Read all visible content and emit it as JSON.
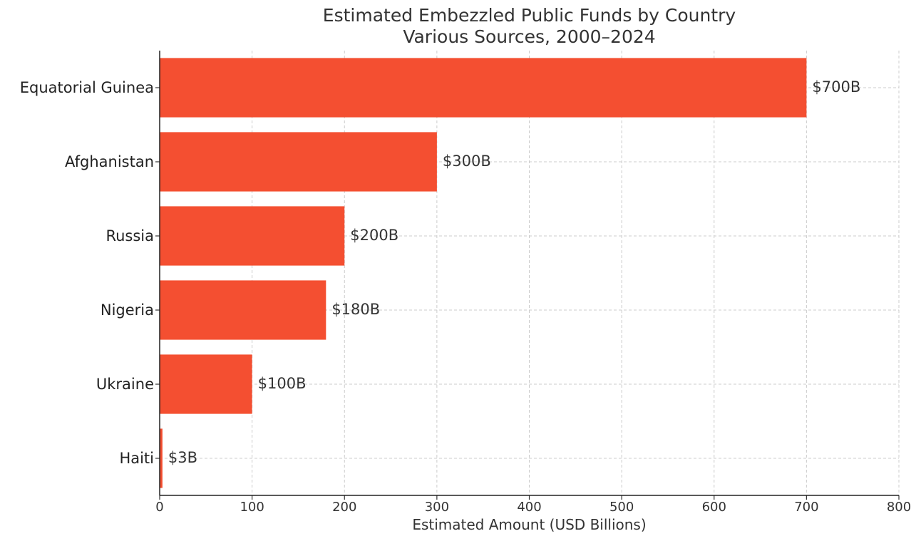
{
  "chart_data": {
    "type": "bar",
    "orientation": "horizontal",
    "title": "Estimated Embezzled Public Funds by Country",
    "subtitle": "Various Sources, 2000–2024",
    "xlabel": "Estimated Amount (USD Billions)",
    "ylabel": "",
    "xlim": [
      0,
      800
    ],
    "xticks": [
      0,
      100,
      200,
      300,
      400,
      500,
      600,
      700,
      800
    ],
    "grid": true,
    "categories": [
      "Equatorial Guinea",
      "Afghanistan",
      "Russia",
      "Nigeria",
      "Ukraine",
      "Haiti"
    ],
    "values": [
      700,
      300,
      200,
      180,
      100,
      3
    ],
    "data_labels": [
      "$700B",
      "$300B",
      "$200B",
      "$180B",
      "$100B",
      "$3B"
    ],
    "bar_color": "#f44f31",
    "text_color": "#333333"
  }
}
